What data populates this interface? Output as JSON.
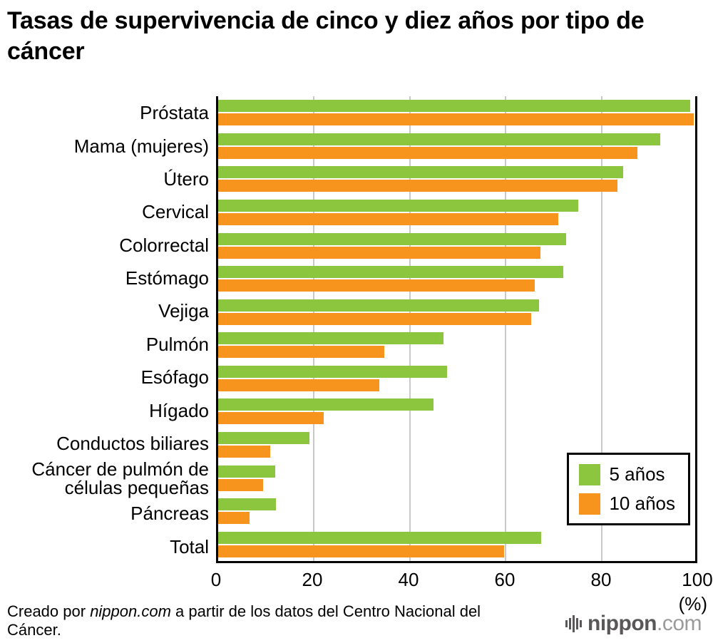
{
  "title": "Tasas de supervivencia de cinco y diez años por tipo de cáncer",
  "chart_data": {
    "type": "bar",
    "orientation": "horizontal",
    "title": "Tasas de supervivencia de cinco y diez años por tipo de cáncer",
    "categories": [
      "Próstata",
      "Mama (mujeres)",
      "Útero",
      "Cervical",
      "Colorrectal",
      "Estómago",
      "Vejiga",
      "Pulmón",
      "Esófago",
      "Hígado",
      "Conductos biliares",
      "Cáncer de pulmón de células pequeñas",
      "Páncreas",
      "Total"
    ],
    "series": [
      {
        "name": "5 años",
        "color": "#8CC63E",
        "values": [
          98.5,
          92.3,
          84.5,
          75.2,
          72.6,
          72.0,
          67.0,
          47.0,
          47.7,
          45.0,
          19.0,
          11.9,
          12.1,
          67.4
        ]
      },
      {
        "name": "10 años",
        "color": "#F7941D",
        "values": [
          99.2,
          87.5,
          83.3,
          71.0,
          67.2,
          66.0,
          65.3,
          34.7,
          33.6,
          22.0,
          10.8,
          9.4,
          6.6,
          59.6
        ]
      }
    ],
    "xlim": [
      0,
      100
    ],
    "x_ticks": [
      0,
      20,
      40,
      60,
      80,
      100
    ],
    "x_unit": "(%)",
    "grid": true,
    "legend_position": "bottom-right"
  },
  "legend": {
    "items": [
      {
        "label": "5 años",
        "color": "#8CC63E"
      },
      {
        "label": "10 años",
        "color": "#F7941D"
      }
    ]
  },
  "x_axis": {
    "unit_label": "(%)"
  },
  "source": {
    "prefix": "Creado por ",
    "brand": "nippon.com",
    "suffix": " a partir de los datos del Centro Nacional del Cáncer."
  },
  "logo": {
    "brand": "nippon",
    "tld": ".com",
    "icon": "soundwave-bars-icon"
  },
  "colors": {
    "five_year": "#8CC63E",
    "ten_year": "#F7941D",
    "gridline": "#c9c9c9",
    "axis": "#000000",
    "logo_dark": "#595757",
    "logo_light": "#9b9b9b"
  }
}
